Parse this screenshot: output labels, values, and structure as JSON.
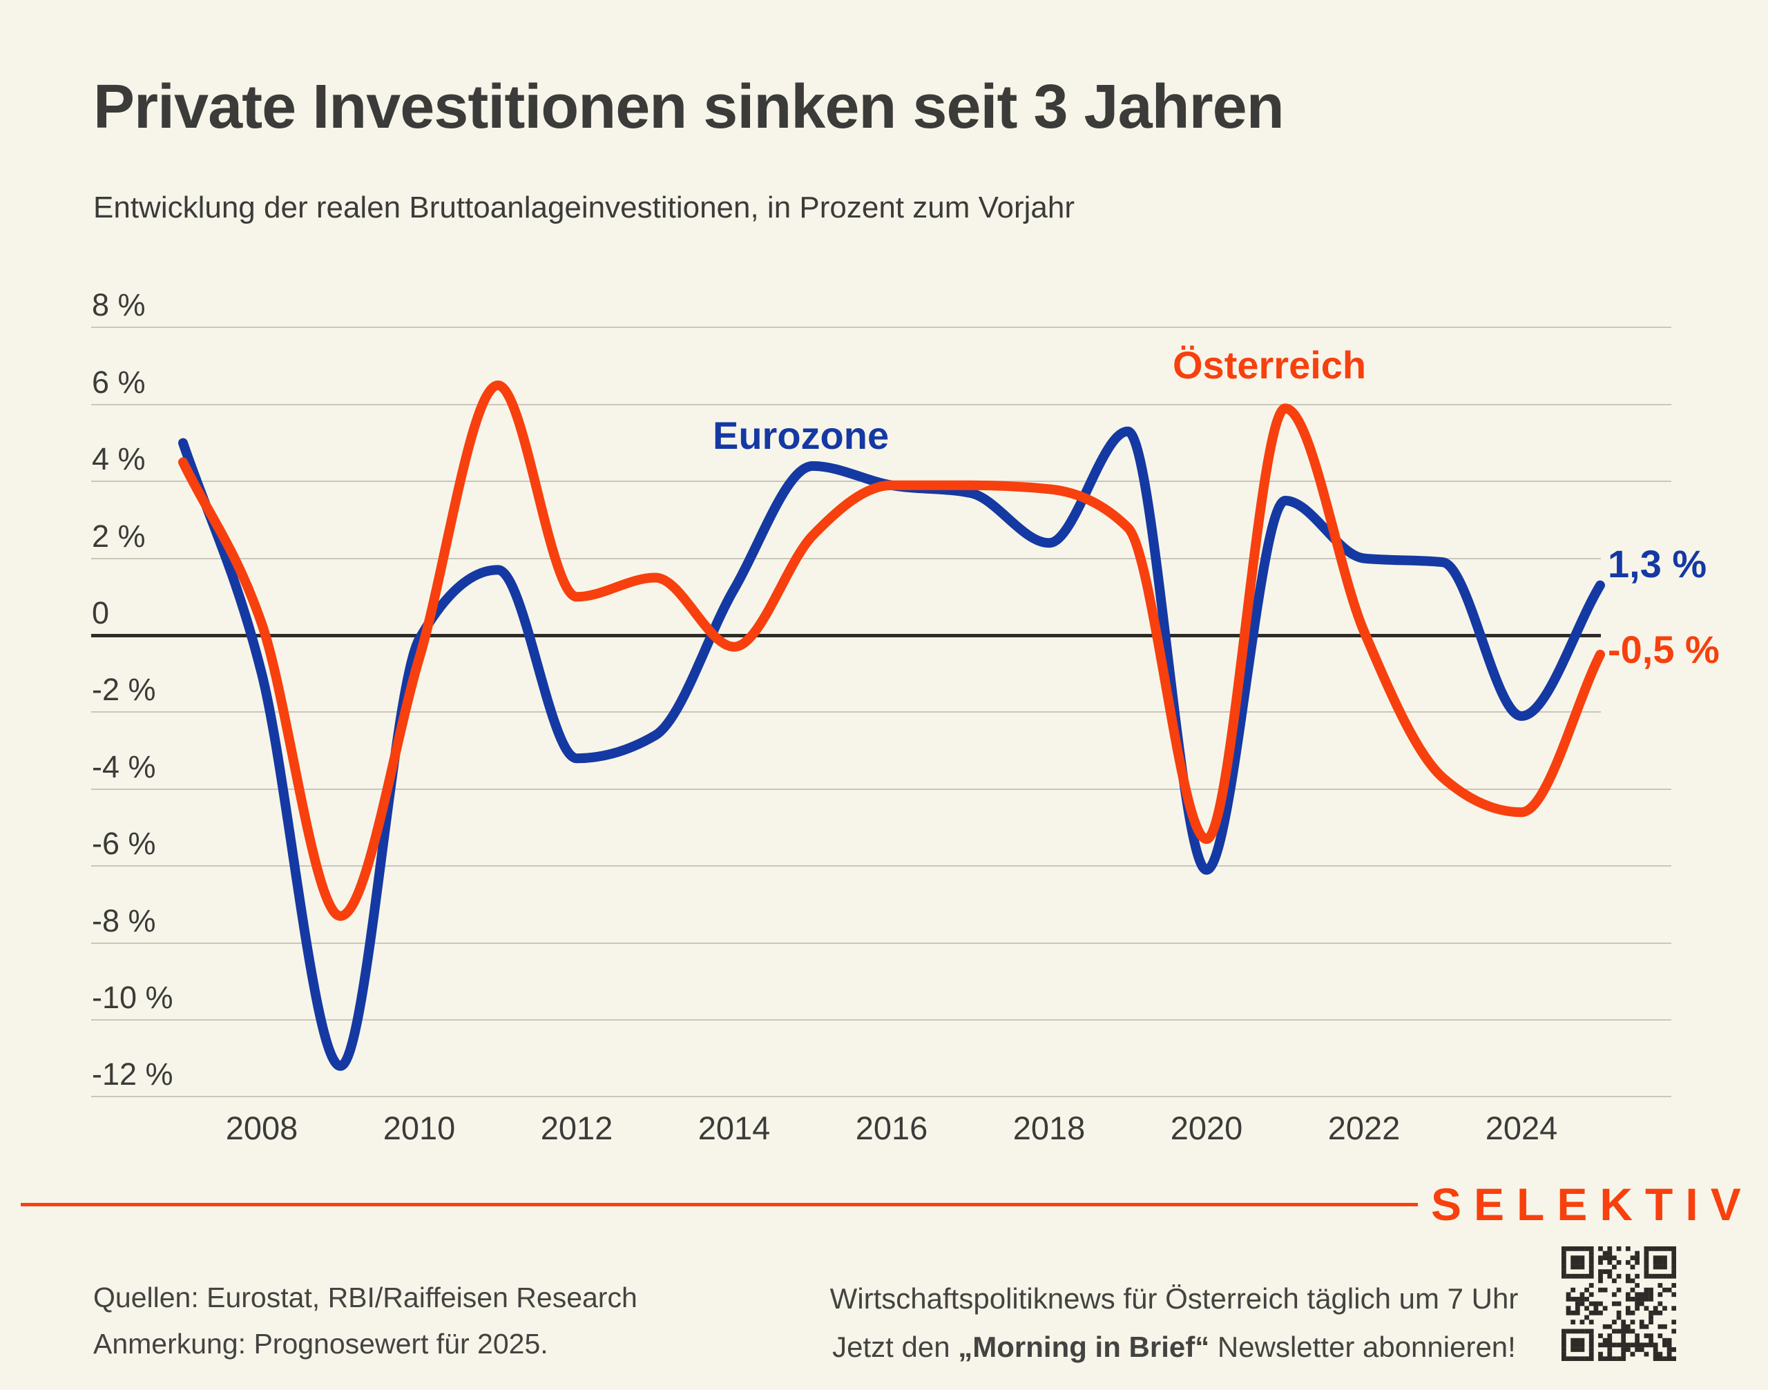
{
  "title": "Private Investitionen sinken seit 3 Jahren",
  "subtitle": "Entwicklung der realen Bruttoanlageinvestitionen, in Prozent zum Vorjahr",
  "colors": {
    "eurozone": "#1539A3",
    "oesterreich": "#F7400E",
    "background": "#F7F5E9",
    "title_text": "#3B3B39",
    "body_text": "#434341",
    "grid": "#C9C6BA",
    "zero_line": "#2D2C2A",
    "qr_dark": "#2D2A28"
  },
  "chart_data": {
    "type": "line",
    "x": [
      2007,
      2008,
      2009,
      2010,
      2011,
      2012,
      2013,
      2014,
      2015,
      2016,
      2017,
      2018,
      2019,
      2020,
      2021,
      2022,
      2023,
      2024,
      2025
    ],
    "x_tick_labels": [
      "2008",
      "2010",
      "2012",
      "2014",
      "2016",
      "2018",
      "2020",
      "2022",
      "2024"
    ],
    "x_tick_years": [
      2008,
      2010,
      2012,
      2014,
      2016,
      2018,
      2020,
      2022,
      2024
    ],
    "y_ticks": [
      {
        "label": "8 %",
        "value": 8
      },
      {
        "label": "6 %",
        "value": 6
      },
      {
        "label": "4 %",
        "value": 4
      },
      {
        "label": "2 %",
        "value": 2
      },
      {
        "label": "0",
        "value": 0
      },
      {
        "label": "-2 %",
        "value": -2
      },
      {
        "label": "-4 %",
        "value": -4
      },
      {
        "label": "-6 %",
        "value": -6
      },
      {
        "label": "-8 %",
        "value": -8
      },
      {
        "label": "-10 %",
        "value": -10
      },
      {
        "label": "-12 %",
        "value": -12
      }
    ],
    "ylim": [
      -12,
      8
    ],
    "grid": "horizontal only, zero line emphasized",
    "legend_position": "inline labels near curves",
    "series": [
      {
        "name": "Eurozone",
        "color_key": "eurozone",
        "values": [
          5.0,
          -1.0,
          -11.2,
          -0.1,
          1.7,
          -3.2,
          -2.6,
          1.2,
          4.4,
          3.9,
          3.7,
          2.4,
          5.3,
          -6.1,
          3.5,
          2.0,
          1.9,
          -2.1,
          1.3
        ],
        "end_label": "1,3 %"
      },
      {
        "name": "Österreich",
        "color_key": "oesterreich",
        "values": [
          4.5,
          0.3,
          -7.3,
          -0.6,
          6.5,
          1.0,
          1.5,
          -0.3,
          2.6,
          3.9,
          3.9,
          3.8,
          2.8,
          -5.3,
          5.9,
          0.1,
          -3.7,
          -4.6,
          -0.5
        ],
        "end_label": "-0,5 %"
      }
    ]
  },
  "labels": {
    "eurozone": "Eurozone",
    "oesterreich": "Österreich",
    "end_eurozone": "1,3 %",
    "end_oesterreich": "-0,5 %"
  },
  "footer": {
    "left_line1": "Quellen: Eurostat, RBI/Raiffeisen Research",
    "left_line2": "Anmerkung: Prognosewert für 2025.",
    "right_line1": "Wirtschaftspolitiknews für Österreich täglich um 7 Uhr",
    "right_line2_prefix": "Jetzt den ",
    "right_line2_bold": "„Morning in Brief“",
    "right_line2_suffix": " Newsletter abonnieren!"
  },
  "logo": "SELEKTIV"
}
